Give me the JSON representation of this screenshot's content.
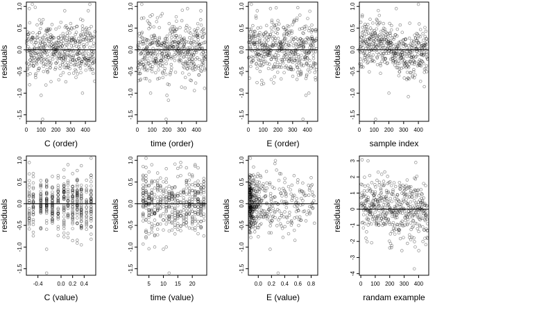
{
  "figure": {
    "rows": 2,
    "cols": 4,
    "point_color": "#000000",
    "background": "#ffffff"
  },
  "chart_data": [
    {
      "type": "scatter",
      "title": "",
      "xlabel": "C (order)",
      "ylabel": "residuals",
      "xlim": [
        0,
        470
      ],
      "ylim": [
        -1.65,
        1.1
      ],
      "xticks": [
        0,
        100,
        200,
        300,
        400
      ],
      "xtick_labels": [
        "0",
        "100",
        "200",
        "300",
        "400"
      ],
      "yticks": [
        -1.5,
        -1.0,
        -0.5,
        0.0,
        0.5,
        1.0
      ],
      "ytick_labels": [
        "-1.5",
        "-1.0",
        "-0.5",
        "0.0",
        "0.5",
        "1.0"
      ],
      "hline": 0,
      "x_kind": "index",
      "n": 460,
      "y_spread": 0.32,
      "y_shift": 0.0,
      "seed": 11,
      "outliers": [
        [
          110,
          -1.6
        ],
        [
          430,
          1.05
        ],
        [
          20,
          0.95
        ],
        [
          100,
          -1.05
        ],
        [
          260,
          0.9
        ],
        [
          380,
          -1.0
        ]
      ]
    },
    {
      "type": "scatter",
      "title": "",
      "xlabel": "time (order)",
      "ylabel": "residuals",
      "xlim": [
        0,
        470
      ],
      "ylim": [
        -1.65,
        1.1
      ],
      "xticks": [
        0,
        100,
        200,
        300,
        400
      ],
      "xtick_labels": [
        "0",
        "100",
        "200",
        "300",
        "400"
      ],
      "yticks": [
        -1.5,
        -1.0,
        -0.5,
        0.0,
        0.5,
        1.0
      ],
      "ytick_labels": [
        "-1.5",
        "-1.0",
        "-0.5",
        "0.0",
        "0.5",
        "1.0"
      ],
      "hline": 0,
      "x_kind": "index",
      "n": 460,
      "y_spread": 0.32,
      "y_shift": 0.0,
      "seed": 23,
      "outliers": [
        [
          195,
          -1.6
        ],
        [
          30,
          1.05
        ],
        [
          200,
          -1.05
        ],
        [
          340,
          0.95
        ],
        [
          90,
          -1.0
        ],
        [
          430,
          0.9
        ]
      ]
    },
    {
      "type": "scatter",
      "title": "",
      "xlabel": "E (order)",
      "ylabel": "residuals",
      "xlim": [
        0,
        470
      ],
      "ylim": [
        -1.65,
        1.1
      ],
      "xticks": [
        0,
        100,
        200,
        300,
        400
      ],
      "xtick_labels": [
        "0",
        "100",
        "200",
        "300",
        "400"
      ],
      "yticks": [
        -1.5,
        -1.0,
        -0.5,
        0.0,
        0.5,
        1.0
      ],
      "ytick_labels": [
        "-1.5",
        "-1.0",
        "-0.5",
        "0.0",
        "0.5",
        "1.0"
      ],
      "hline": 0,
      "x_kind": "index",
      "n": 460,
      "y_spread": 0.32,
      "y_shift": 0.0,
      "seed": 37,
      "outliers": [
        [
          370,
          -1.6
        ],
        [
          20,
          1.05
        ],
        [
          390,
          -1.05
        ],
        [
          150,
          0.95
        ],
        [
          410,
          -1.0
        ],
        [
          60,
          0.9
        ]
      ]
    },
    {
      "type": "scatter",
      "title": "",
      "xlabel": "sample index",
      "ylabel": "residuals",
      "xlim": [
        0,
        470
      ],
      "ylim": [
        -1.65,
        1.1
      ],
      "xticks": [
        0,
        100,
        200,
        300,
        400
      ],
      "xtick_labels": [
        "0",
        "100",
        "200",
        "300",
        "400"
      ],
      "yticks": [
        -1.5,
        -1.0,
        -0.5,
        0.0,
        0.5,
        1.0
      ],
      "ytick_labels": [
        "-1.5",
        "-1.0",
        "-0.5",
        "0.0",
        "0.5",
        "1.0"
      ],
      "hline": 0,
      "x_kind": "trend",
      "n": 460,
      "y_spread": 0.28,
      "y_shift": 0.0,
      "seed": 41,
      "outliers": [
        [
          110,
          -1.6
        ],
        [
          400,
          1.05
        ],
        [
          250,
          0.95
        ],
        [
          200,
          -1.0
        ],
        [
          20,
          0.8
        ],
        [
          440,
          -0.85
        ]
      ]
    },
    {
      "type": "scatter",
      "title": "",
      "xlabel": "C (value)",
      "ylabel": "residuals",
      "xlim": [
        -0.6,
        0.6
      ],
      "ylim": [
        -1.65,
        1.1
      ],
      "xticks": [
        -0.4,
        0.0,
        0.2,
        0.4
      ],
      "xtick_labels": [
        "-0.4",
        "0.0",
        "0.2",
        "0.4"
      ],
      "yticks": [
        -1.5,
        -1.0,
        -0.5,
        0.0,
        0.5,
        1.0
      ],
      "ytick_labels": [
        "-1.5",
        "-1.0",
        "-0.5",
        "0.0",
        "0.5",
        "1.0"
      ],
      "hline": 0,
      "x_kind": "discrete",
      "n": 460,
      "y_spread": 0.32,
      "y_shift": 0.0,
      "seed": 53,
      "x_levels": [
        -0.55,
        -0.48,
        -0.35,
        -0.25,
        -0.15,
        -0.05,
        0.05,
        0.12,
        0.2,
        0.28,
        0.35,
        0.44,
        0.52
      ],
      "outliers": [
        [
          -0.25,
          -1.6
        ],
        [
          -0.55,
          0.95
        ],
        [
          0.52,
          1.05
        ],
        [
          -0.25,
          -1.05
        ],
        [
          0.12,
          0.9
        ],
        [
          0.35,
          -0.95
        ]
      ]
    },
    {
      "type": "scatter",
      "title": "",
      "xlabel": "time (value)",
      "ylabel": "residuals",
      "xlim": [
        1,
        25
      ],
      "ylim": [
        -1.65,
        1.1
      ],
      "xticks": [
        5,
        10,
        15,
        20
      ],
      "xtick_labels": [
        "5",
        "10",
        "15",
        "20"
      ],
      "yticks": [
        -1.5,
        -1.0,
        -0.5,
        0.0,
        0.5,
        1.0
      ],
      "ytick_labels": [
        "-1.5",
        "-1.0",
        "-0.5",
        "0.0",
        "0.5",
        "1.0"
      ],
      "hline": 0,
      "x_kind": "discrete",
      "n": 460,
      "y_spread": 0.32,
      "y_shift": 0.0,
      "seed": 67,
      "x_levels": [
        3,
        4,
        5,
        6,
        7,
        8,
        9,
        10,
        11,
        12,
        13,
        14,
        15,
        16,
        17,
        18,
        19,
        20,
        21,
        22,
        23,
        24
      ],
      "outliers": [
        [
          12,
          -1.6
        ],
        [
          4,
          1.05
        ],
        [
          10,
          -1.05
        ],
        [
          21,
          0.9
        ],
        [
          7,
          -1.0
        ],
        [
          16,
          0.95
        ]
      ]
    },
    {
      "type": "scatter",
      "title": "",
      "xlabel": "E (value)",
      "ylabel": "residuals",
      "xlim": [
        -0.15,
        0.9
      ],
      "ylim": [
        -1.65,
        1.1
      ],
      "xticks": [
        0.0,
        0.2,
        0.4,
        0.6,
        0.8
      ],
      "xtick_labels": [
        "0.0",
        "0.2",
        "0.4",
        "0.6",
        "0.8"
      ],
      "yticks": [
        -1.5,
        -1.0,
        -0.5,
        0.0,
        0.5,
        1.0
      ],
      "ytick_labels": [
        "-1.5",
        "-1.0",
        "-0.5",
        "0.0",
        "0.5",
        "1.0"
      ],
      "hline": 0,
      "x_kind": "skewed",
      "n": 460,
      "y_spread": 0.32,
      "y_shift": 0.0,
      "seed": 79,
      "outliers": [
        [
          0.3,
          -1.6
        ],
        [
          -0.12,
          1.05
        ],
        [
          0.18,
          -1.05
        ],
        [
          0.8,
          0.6
        ],
        [
          0.85,
          -0.45
        ],
        [
          0.6,
          0.55
        ]
      ]
    },
    {
      "type": "scatter",
      "title": "",
      "xlabel": "randam example",
      "ylabel": "residuals",
      "xlim": [
        -10,
        470
      ],
      "ylim": [
        -4.1,
        3.3
      ],
      "xticks": [
        0,
        100,
        200,
        300,
        400
      ],
      "xtick_labels": [
        "0",
        "100",
        "200",
        "300",
        "400"
      ],
      "yticks": [
        -4,
        -3,
        -2,
        -1,
        0,
        1,
        2,
        3
      ],
      "ytick_labels": [
        "-4",
        "-3",
        "-2",
        "-1",
        "0",
        "1",
        "2",
        "3"
      ],
      "hline": 0,
      "x_kind": "index",
      "n": 460,
      "y_spread": 1.0,
      "y_shift": 0.0,
      "seed": 97,
      "outliers": [
        [
          370,
          -3.7
        ],
        [
          50,
          3.0
        ],
        [
          380,
          2.9
        ],
        [
          200,
          -2.4
        ],
        [
          120,
          2.3
        ],
        [
          450,
          -2.2
        ]
      ]
    }
  ]
}
